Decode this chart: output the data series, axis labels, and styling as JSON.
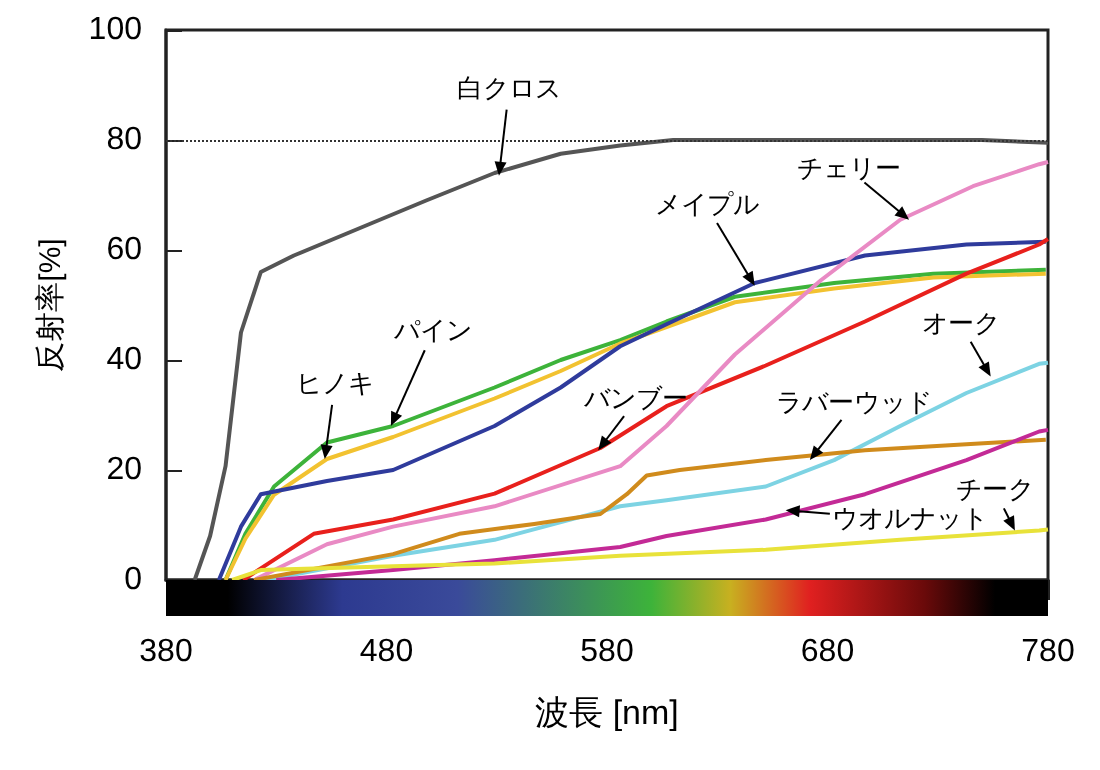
{
  "chart_data": {
    "type": "line",
    "xlabel": "波長 [nm]",
    "ylabel": "反射率[%]",
    "xlim": [
      380,
      780
    ],
    "ylim": [
      0,
      100
    ],
    "xticks": [
      380,
      480,
      580,
      680,
      780
    ],
    "yticks": [
      0,
      20,
      40,
      60,
      80,
      100
    ],
    "marker": "none",
    "series": [
      {
        "color": "#555555",
        "x": [
          393,
          400,
          407,
          414,
          423,
          438,
          468,
          498,
          529,
          559,
          586,
          610,
          650,
          700,
          750,
          780
        ],
        "values": [
          0,
          8,
          20.7,
          45,
          56,
          59,
          64,
          69,
          74,
          77.5,
          79,
          80,
          80,
          80,
          80,
          79.5
        ]
      },
      {
        "color": "#3db33a",
        "x": [
          407,
          416,
          429,
          453,
          483,
          529,
          559,
          586,
          607,
          638,
          683,
          728,
          779
        ],
        "values": [
          0,
          8.4,
          17,
          25,
          28,
          35,
          40,
          43.6,
          47,
          51.5,
          54,
          55.7,
          56.4
        ]
      },
      {
        "color": "#f2c230",
        "x": [
          407,
          416,
          429,
          453,
          483,
          529,
          559,
          586,
          607,
          638,
          683,
          728,
          779
        ],
        "values": [
          0,
          7.5,
          15.5,
          22,
          26,
          33,
          38,
          43,
          46,
          50.5,
          53,
          55,
          55.7
        ]
      },
      {
        "color": "#2f3b9c",
        "x": [
          404,
          414,
          423,
          453,
          483,
          529,
          559,
          586,
          607,
          647,
          697,
          743,
          779
        ],
        "values": [
          0,
          9.7,
          15.6,
          18,
          20,
          28,
          35,
          42.5,
          46.5,
          54,
          59,
          61,
          61.5
        ]
      },
      {
        "color": "#e8201c",
        "x": [
          415,
          447,
          483,
          529,
          577,
          607,
          652,
          697,
          743,
          776,
          780
        ],
        "values": [
          0,
          8.4,
          11,
          15.7,
          24,
          31.6,
          39,
          47,
          55.7,
          61,
          62
        ]
      },
      {
        "color": "#e98ac4",
        "x": [
          420,
          453,
          483,
          529,
          586,
          607,
          638,
          677,
          713,
          746,
          776,
          780
        ],
        "values": [
          0,
          6.5,
          9.7,
          13.4,
          20.7,
          28,
          41,
          54.5,
          65.5,
          71.6,
          75.6,
          76
        ]
      },
      {
        "color": "#7dd3e3",
        "x": [
          425,
          483,
          529,
          586,
          607,
          652,
          683,
          713,
          743,
          776,
          780
        ],
        "values": [
          0,
          4.4,
          7.3,
          13.4,
          14.5,
          17,
          21.8,
          28,
          34,
          39.3,
          39.5
        ]
      },
      {
        "color": "#d08b1c",
        "x": [
          420,
          483,
          513,
          547,
          577,
          589,
          598,
          613,
          652,
          697,
          743,
          779
        ],
        "values": [
          0,
          4.7,
          8.4,
          10.2,
          12,
          15.6,
          19,
          20,
          21.8,
          23.6,
          24.7,
          25.5
        ]
      },
      {
        "color": "#c32a96",
        "x": [
          430,
          483,
          529,
          586,
          607,
          652,
          697,
          743,
          776,
          780
        ],
        "values": [
          0,
          1.8,
          3.6,
          6,
          8,
          11,
          15.6,
          21.8,
          27,
          27.3
        ]
      },
      {
        "color": "#e8e23a",
        "x": [
          410,
          423,
          483,
          529,
          586,
          652,
          713,
          776,
          780
        ],
        "values": [
          0,
          1.8,
          2.5,
          3,
          4.4,
          5.5,
          7.3,
          9,
          9.2
        ]
      }
    ],
    "ref_lines": [
      {
        "axis": "y",
        "value": 80,
        "line_style": "dotted",
        "color": "#333333"
      }
    ],
    "annotations": [
      {
        "text": "白クロス",
        "x": 531,
        "y": 73.5
      },
      {
        "text": "メイプル",
        "x": 647,
        "y": 53.5
      },
      {
        "text": "チェリー",
        "x": 717,
        "y": 65.5
      },
      {
        "text": "パイン",
        "x": 482,
        "y": 28
      },
      {
        "text": "ヒノキ",
        "x": 452,
        "y": 22
      },
      {
        "text": "バンブー",
        "x": 576,
        "y": 23.6
      },
      {
        "text": "オーク",
        "x": 754,
        "y": 37
      },
      {
        "text": "ラバーウッド",
        "x": 672,
        "y": 21.8
      },
      {
        "text": "ウオルナット",
        "x": 661,
        "y": 12.7
      },
      {
        "text": "チーク",
        "x": 765,
        "y": 9
      }
    ]
  }
}
